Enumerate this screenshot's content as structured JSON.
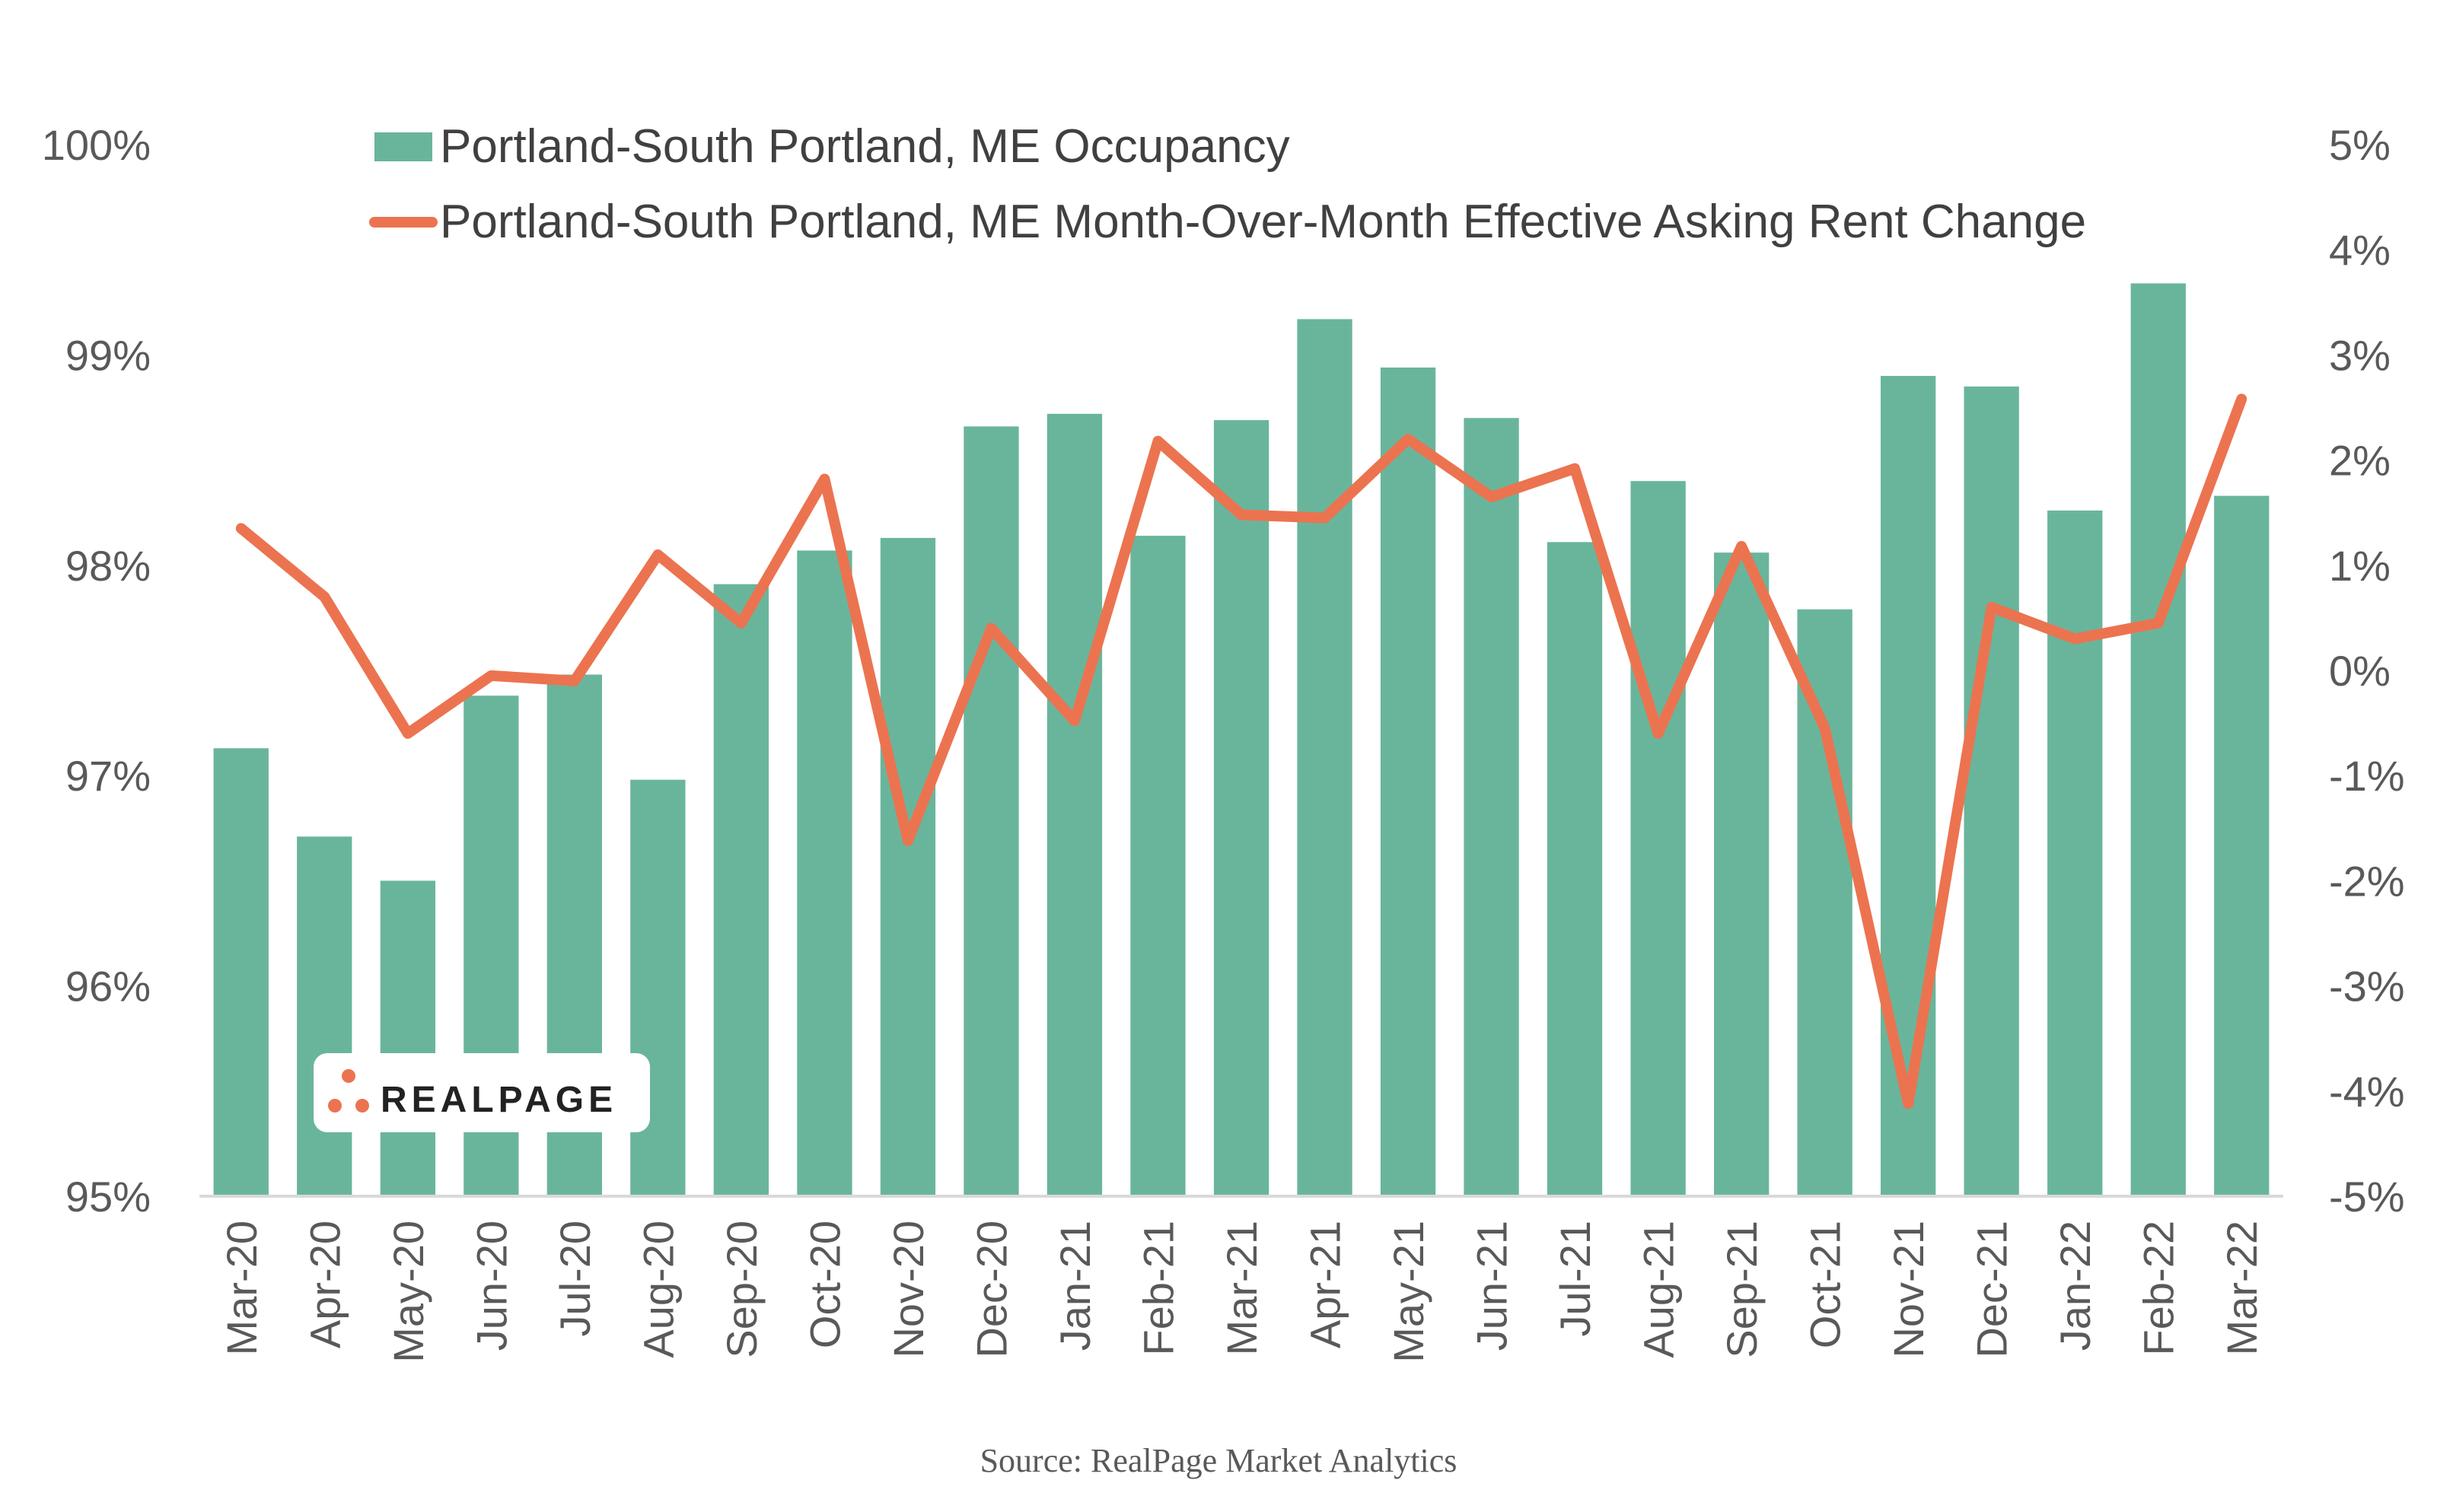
{
  "chart_data": {
    "type": "bar",
    "categories": [
      "Mar-20",
      "Apr-20",
      "May-20",
      "Jun-20",
      "Jul-20",
      "Aug-20",
      "Sep-20",
      "Oct-20",
      "Nov-20",
      "Dec-20",
      "Jan-21",
      "Feb-21",
      "Mar-21",
      "Apr-21",
      "May-21",
      "Jun-21",
      "Jul-21",
      "Aug-21",
      "Sep-21",
      "Oct-21",
      "Nov-21",
      "Dec-21",
      "Jan-22",
      "Feb-22",
      "Mar-22"
    ],
    "series": [
      {
        "name": "Portland-South Portland, ME Occupancy",
        "type": "bar",
        "axis": "left",
        "color": "#69b59b",
        "values": [
          97.13,
          96.71,
          96.5,
          97.38,
          97.48,
          96.98,
          97.91,
          98.07,
          98.13,
          98.66,
          98.72,
          98.14,
          98.69,
          99.17,
          98.94,
          98.7,
          98.11,
          98.4,
          98.06,
          97.79,
          98.9,
          98.85,
          98.26,
          99.34,
          98.33
        ]
      },
      {
        "name": "Portland-South Portland, ME Month-Over-Month Effective Asking Rent Change",
        "type": "line",
        "axis": "right",
        "color": "#ec7350",
        "values": [
          1.35,
          0.7,
          -0.6,
          -0.05,
          -0.1,
          1.1,
          0.45,
          1.82,
          -1.62,
          0.4,
          -0.48,
          2.18,
          1.48,
          1.45,
          2.2,
          1.65,
          1.92,
          -0.6,
          1.18,
          -0.55,
          -4.12,
          0.6,
          0.3,
          0.45,
          2.58
        ]
      }
    ],
    "y_left": {
      "ylim": [
        95,
        100
      ],
      "ticks": [
        "95%",
        "96%",
        "97%",
        "98%",
        "99%",
        "100%"
      ]
    },
    "y_right": {
      "ylim": [
        -5,
        5
      ],
      "ticks": [
        "-5%",
        "-4%",
        "-3%",
        "-2%",
        "-1%",
        "0%",
        "1%",
        "2%",
        "3%",
        "4%",
        "5%"
      ]
    },
    "legend_placement": "top",
    "grid": false
  },
  "logo": {
    "text": "REALPAGE"
  },
  "source": "Source: RealPage Market Analytics"
}
